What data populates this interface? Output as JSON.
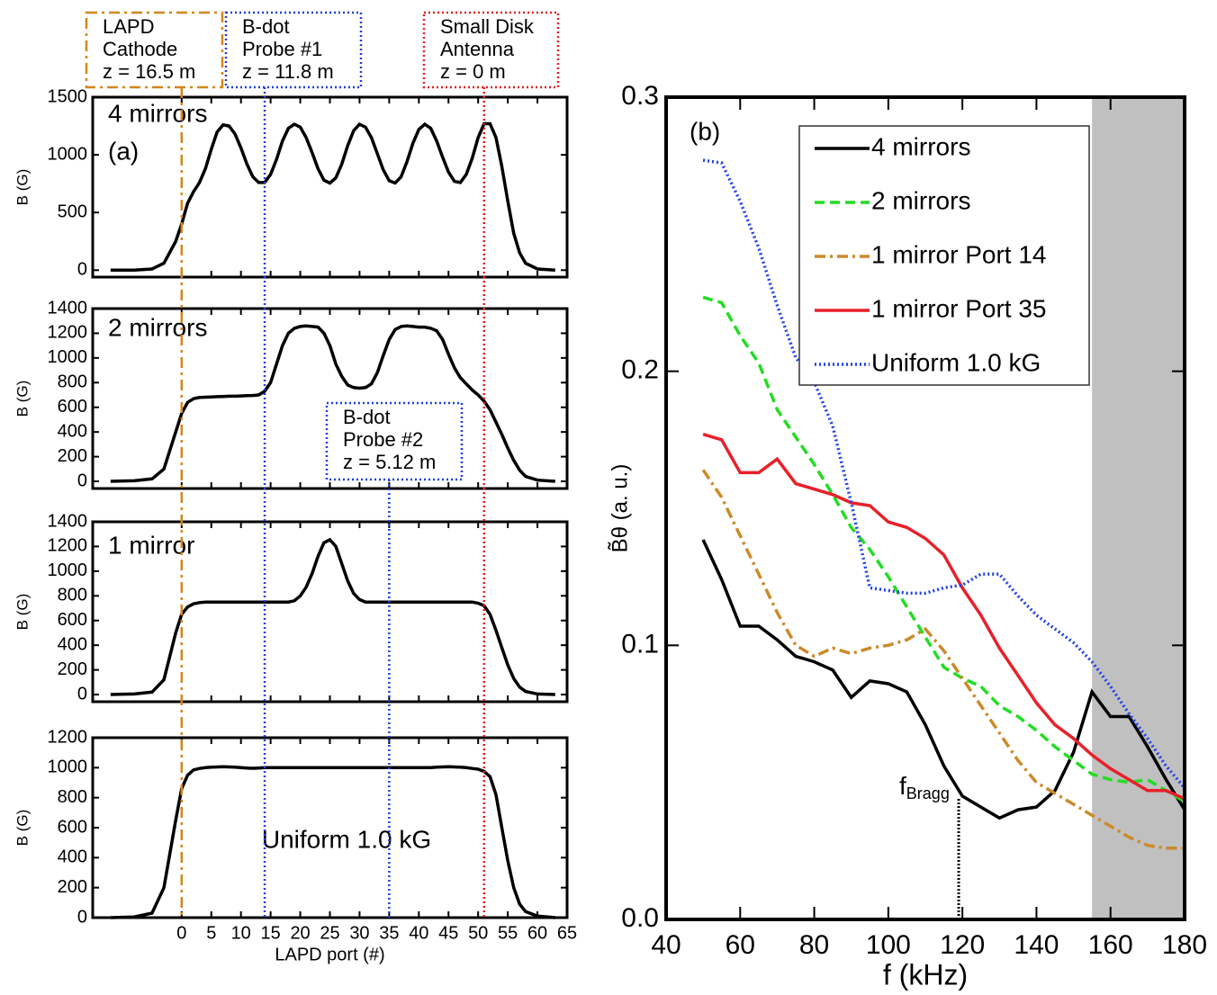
{
  "chart_data": [
    {
      "type": "line",
      "title": "4 mirrors",
      "panel_label": "(a)",
      "ylabel": "B (G)",
      "color": "#000000",
      "xlim": [
        -15,
        65
      ],
      "ylim": [
        -60,
        1500
      ],
      "yticks": [
        0,
        500,
        1000,
        1500
      ],
      "x": [
        -12,
        -8,
        -5,
        -3,
        -1,
        0,
        1,
        2,
        3,
        4,
        5,
        6,
        7,
        8,
        9,
        10,
        11,
        12,
        13,
        14,
        15,
        16,
        17,
        18,
        19,
        20,
        21,
        22,
        23,
        24,
        25,
        26,
        27,
        28,
        29,
        30,
        31,
        32,
        33,
        34,
        35,
        36,
        37,
        38,
        39,
        40,
        41,
        42,
        43,
        44,
        45,
        46,
        47,
        48,
        49,
        50,
        51,
        52,
        53,
        54,
        55,
        56,
        57,
        58,
        60,
        63
      ],
      "values": [
        0,
        0,
        10,
        60,
        250,
        400,
        580,
        680,
        760,
        880,
        1050,
        1200,
        1260,
        1250,
        1180,
        1060,
        920,
        810,
        760,
        760,
        830,
        960,
        1120,
        1230,
        1265,
        1240,
        1150,
        1020,
        880,
        780,
        755,
        800,
        920,
        1080,
        1210,
        1265,
        1240,
        1150,
        1010,
        870,
        775,
        755,
        810,
        940,
        1100,
        1220,
        1265,
        1230,
        1120,
        980,
        850,
        770,
        760,
        830,
        970,
        1150,
        1270,
        1270,
        1150,
        900,
        600,
        320,
        150,
        60,
        10,
        0
      ],
      "reference_lines": [
        {
          "x": 0,
          "color": "#d4861a",
          "dash": "dashdot"
        },
        {
          "x": 14,
          "color": "#1f3fe0",
          "dash": "dotted"
        },
        {
          "x": 35,
          "color": "#1f3fe0",
          "dash": "dotted"
        },
        {
          "x": 51,
          "color": "#e02020",
          "dash": "dotted"
        }
      ],
      "annotations": [
        {
          "lines": [
            "LAPD",
            "Cathode",
            "z = 16.5 m"
          ],
          "color": "#d4861a",
          "dash": "dashdot"
        },
        {
          "lines": [
            "B-dot",
            "Probe #1",
            "z = 11.8 m"
          ],
          "color": "#1f3fe0",
          "dash": "dotted"
        },
        {
          "lines": [
            "Small Disk",
            "Antenna",
            "z = 0 m"
          ],
          "color": "#e02020",
          "dash": "dotted"
        }
      ]
    },
    {
      "type": "line",
      "title": "2 mirrors",
      "ylabel": "B (G)",
      "color": "#000000",
      "xlim": [
        -15,
        65
      ],
      "ylim": [
        -58,
        1400
      ],
      "yticks": [
        0,
        200,
        400,
        600,
        800,
        1000,
        1200,
        1400
      ],
      "x": [
        -12,
        -8,
        -5,
        -3,
        -1,
        0,
        1,
        2,
        3,
        4,
        5,
        6,
        7,
        8,
        9,
        10,
        11,
        12,
        13,
        14,
        15,
        16,
        17,
        18,
        19,
        20,
        21,
        22,
        23,
        24,
        25,
        26,
        27,
        28,
        29,
        30,
        31,
        32,
        33,
        34,
        35,
        36,
        37,
        38,
        39,
        40,
        41,
        42,
        43,
        44,
        45,
        46,
        47,
        48,
        49,
        50,
        51,
        52,
        53,
        54,
        55,
        56,
        57,
        58,
        60,
        63
      ],
      "values": [
        0,
        5,
        20,
        100,
        400,
        550,
        640,
        670,
        680,
        682,
        684,
        686,
        688,
        690,
        690,
        692,
        694,
        696,
        700,
        730,
        800,
        950,
        1100,
        1200,
        1240,
        1255,
        1260,
        1255,
        1250,
        1200,
        1100,
        950,
        850,
        780,
        760,
        755,
        760,
        790,
        880,
        1020,
        1150,
        1230,
        1255,
        1260,
        1255,
        1250,
        1250,
        1240,
        1220,
        1150,
        1030,
        920,
        840,
        790,
        740,
        700,
        650,
        580,
        480,
        380,
        270,
        170,
        90,
        40,
        10,
        0
      ],
      "annotations": [
        {
          "lines": [
            "B-dot",
            "Probe #2",
            "z = 5.12 m"
          ],
          "color": "#1f3fe0",
          "dash": "dotted"
        }
      ]
    },
    {
      "type": "line",
      "title": "1 mirror",
      "ylabel": "B (G)",
      "color": "#000000",
      "xlim": [
        -15,
        65
      ],
      "ylim": [
        -58,
        1400
      ],
      "yticks": [
        0,
        200,
        400,
        600,
        800,
        1000,
        1200,
        1400
      ],
      "x": [
        -12,
        -8,
        -5,
        -3,
        -1,
        0,
        1,
        2,
        3,
        4,
        5,
        6,
        7,
        8,
        9,
        10,
        11,
        12,
        13,
        14,
        15,
        16,
        17,
        18,
        19,
        20,
        21,
        22,
        23,
        24,
        25,
        26,
        27,
        28,
        29,
        30,
        31,
        32,
        33,
        34,
        35,
        36,
        37,
        38,
        39,
        40,
        41,
        42,
        43,
        44,
        45,
        46,
        47,
        48,
        49,
        50,
        51,
        52,
        53,
        54,
        55,
        56,
        57,
        58,
        60,
        63
      ],
      "values": [
        0,
        5,
        20,
        120,
        500,
        650,
        710,
        735,
        745,
        750,
        750,
        750,
        750,
        750,
        750,
        750,
        750,
        750,
        750,
        750,
        750,
        750,
        750,
        750,
        760,
        800,
        870,
        980,
        1120,
        1230,
        1255,
        1200,
        1060,
        920,
        820,
        770,
        750,
        750,
        750,
        750,
        750,
        750,
        750,
        750,
        750,
        750,
        750,
        750,
        750,
        750,
        750,
        750,
        750,
        750,
        750,
        740,
        720,
        650,
        520,
        380,
        240,
        130,
        60,
        25,
        5,
        0
      ]
    },
    {
      "type": "line",
      "title": "Uniform 1.0 kG",
      "ylabel": "B (G)",
      "xlabel": "LAPD port (#)",
      "color": "#000000",
      "xlim": [
        -15,
        65
      ],
      "ylim": [
        0,
        1200
      ],
      "yticks": [
        0,
        200,
        400,
        600,
        800,
        1000,
        1200
      ],
      "xticks": [
        0,
        5,
        10,
        15,
        20,
        25,
        30,
        35,
        40,
        45,
        50,
        55,
        60,
        65
      ],
      "x": [
        -12,
        -8,
        -5,
        -3,
        -1,
        0,
        1,
        2,
        3,
        4,
        5,
        6,
        7,
        8,
        9,
        10,
        11,
        12,
        13,
        14,
        15,
        16,
        17,
        18,
        19,
        20,
        21,
        22,
        23,
        24,
        25,
        26,
        27,
        28,
        29,
        30,
        31,
        32,
        33,
        34,
        35,
        36,
        37,
        38,
        39,
        40,
        41,
        42,
        43,
        44,
        45,
        46,
        47,
        48,
        49,
        50,
        51,
        52,
        53,
        54,
        55,
        56,
        57,
        58,
        60,
        63
      ],
      "values": [
        0,
        5,
        30,
        200,
        650,
        860,
        950,
        985,
        995,
        1000,
        1003,
        1005,
        1006,
        1005,
        1003,
        1000,
        998,
        996,
        998,
        1000,
        1000,
        1000,
        1000,
        1000,
        1000,
        1000,
        1000,
        1000,
        1000,
        1000,
        1000,
        1000,
        1000,
        1000,
        1000,
        1000,
        1000,
        1000,
        1000,
        1000,
        1000,
        1000,
        1000,
        1000,
        1000,
        1000,
        1000,
        1000,
        1003,
        1005,
        1006,
        1005,
        1003,
        1000,
        995,
        990,
        975,
        940,
        820,
        600,
        380,
        200,
        90,
        40,
        10,
        0
      ]
    },
    {
      "type": "line",
      "panel_label": "(b)",
      "xlabel": "f (kHz)",
      "ylabel": "B̃θ (a. u.)",
      "xlim": [
        40,
        180
      ],
      "ylim": [
        0,
        0.3
      ],
      "xticks": [
        40,
        60,
        80,
        100,
        120,
        140,
        160,
        180
      ],
      "yticks": [
        {
          "value": 0,
          "label": "0.0"
        },
        0.1,
        0.2,
        0.3
      ],
      "legend": "upper right",
      "shaded_region": {
        "x": [
          155,
          180
        ],
        "color": "#c0c0c0"
      },
      "annotations": [
        {
          "text": "f",
          "subscript": "Bragg",
          "x": 119,
          "y": 0.044
        }
      ],
      "x": [
        50,
        55,
        60,
        65,
        70,
        75,
        80,
        85,
        90,
        95,
        100,
        105,
        110,
        115,
        120,
        125,
        130,
        135,
        140,
        145,
        150,
        155,
        160,
        165,
        170,
        175,
        180
      ],
      "series": [
        {
          "name": "4 mirrors",
          "color": "#000000",
          "dash": "solid",
          "values": [
            0.1385,
            0.124,
            0.107,
            0.107,
            0.102,
            0.096,
            0.094,
            0.091,
            0.081,
            0.087,
            0.086,
            0.083,
            0.071,
            0.056,
            0.045,
            0.041,
            0.037,
            0.04,
            0.041,
            0.047,
            0.061,
            0.083,
            0.074,
            0.074,
            0.063,
            0.051,
            0.04
          ]
        },
        {
          "name": "2 mirrors",
          "color": "#22dd22",
          "dash": "dashed",
          "values": [
            0.227,
            0.225,
            0.213,
            0.203,
            0.186,
            0.176,
            0.166,
            0.155,
            0.143,
            0.135,
            0.125,
            0.114,
            0.103,
            0.092,
            0.088,
            0.085,
            0.078,
            0.074,
            0.069,
            0.063,
            0.058,
            0.053,
            0.051,
            0.05,
            0.051,
            0.047,
            0.043
          ]
        },
        {
          "name": "1 mirror Port 14",
          "color": "#cc8a28",
          "dash": "dashdot",
          "values": [
            0.164,
            0.154,
            0.14,
            0.126,
            0.112,
            0.1,
            0.096,
            0.099,
            0.097,
            0.099,
            0.1,
            0.102,
            0.106,
            0.098,
            0.088,
            0.078,
            0.068,
            0.058,
            0.05,
            0.046,
            0.042,
            0.038,
            0.034,
            0.03,
            0.027,
            0.026,
            0.026
          ]
        },
        {
          "name": "1 mirror Port 35",
          "color": "#e8202a",
          "dash": "solid",
          "values": [
            0.177,
            0.175,
            0.163,
            0.163,
            0.168,
            0.159,
            0.157,
            0.155,
            0.152,
            0.151,
            0.145,
            0.143,
            0.139,
            0.133,
            0.121,
            0.111,
            0.099,
            0.089,
            0.079,
            0.071,
            0.066,
            0.06,
            0.055,
            0.051,
            0.047,
            0.047,
            0.044
          ]
        },
        {
          "name": "Uniform 1.0 kG",
          "color": "#2040e8",
          "dash": "dotted",
          "values": [
            0.277,
            0.276,
            0.262,
            0.245,
            0.224,
            0.205,
            0.196,
            0.18,
            0.152,
            0.121,
            0.12,
            0.119,
            0.119,
            0.121,
            0.122,
            0.126,
            0.126,
            0.118,
            0.111,
            0.106,
            0.101,
            0.094,
            0.085,
            0.075,
            0.066,
            0.056,
            0.048
          ]
        }
      ]
    }
  ]
}
